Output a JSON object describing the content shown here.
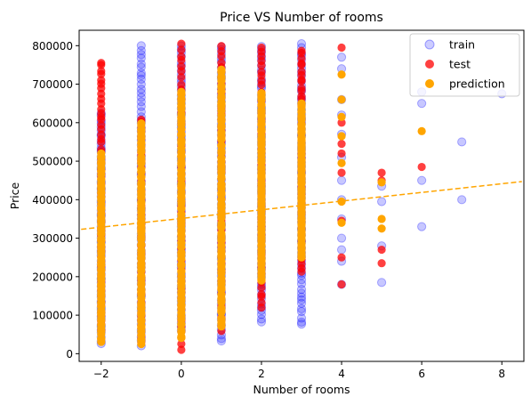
{
  "chart_data": {
    "type": "scatter",
    "title": "Price VS Number of rooms",
    "xlabel": "Number of rooms",
    "ylabel": "Price",
    "xlim": [
      -2.55,
      8.55
    ],
    "ylim": [
      -20000,
      840000
    ],
    "xticks": [
      -2,
      0,
      2,
      4,
      6,
      8
    ],
    "yticks": [
      0,
      100000,
      200000,
      300000,
      400000,
      500000,
      600000,
      700000,
      800000
    ],
    "grid": false,
    "legend": {
      "placement": "top-right"
    },
    "legend_entries": [
      "train",
      "test",
      "prediction"
    ],
    "colors": {
      "train": "#0000ff",
      "test": "#ff0000",
      "prediction": "#ffa500",
      "trend": "#ffa500"
    },
    "trend_line": {
      "style": "dashed",
      "x": [
        -2.5,
        8.5
      ],
      "y": [
        323000,
        447000
      ]
    },
    "columns": [
      {
        "x": -2,
        "train": [
          25000,
          625000
        ],
        "test": [
          60000,
          750000
        ],
        "prediction": [
          30000,
          520000
        ],
        "extra_test": [
          615000,
          755000
        ]
      },
      {
        "x": -1,
        "train": [
          20000,
          800000
        ],
        "test": [
          30000,
          610000
        ],
        "prediction": [
          25000,
          600000
        ]
      },
      {
        "x": 0,
        "train": [
          60000,
          800000
        ],
        "test": [
          10000,
          805000
        ],
        "prediction": [
          40000,
          680000
        ]
      },
      {
        "x": 1,
        "train": [
          30000,
          800000
        ],
        "test": [
          55000,
          800000
        ],
        "prediction": [
          70000,
          740000
        ]
      },
      {
        "x": 2,
        "train": [
          80000,
          800000
        ],
        "test": [
          120000,
          795000
        ],
        "prediction": [
          190000,
          680000
        ]
      },
      {
        "x": 3,
        "train": [
          75000,
          805000
        ],
        "test": [
          210000,
          790000
        ],
        "prediction": [
          250000,
          650000
        ]
      }
    ],
    "points": {
      "train": [
        {
          "x": 4,
          "y": 180000
        },
        {
          "x": 4,
          "y": 240000
        },
        {
          "x": 4,
          "y": 270000
        },
        {
          "x": 4,
          "y": 300000
        },
        {
          "x": 4,
          "y": 350000
        },
        {
          "x": 4,
          "y": 400000
        },
        {
          "x": 4,
          "y": 450000
        },
        {
          "x": 4,
          "y": 510000
        },
        {
          "x": 4,
          "y": 570000
        },
        {
          "x": 4,
          "y": 620000
        },
        {
          "x": 4,
          "y": 660000
        },
        {
          "x": 4,
          "y": 740000
        },
        {
          "x": 4,
          "y": 770000
        },
        {
          "x": 5,
          "y": 185000
        },
        {
          "x": 5,
          "y": 280000
        },
        {
          "x": 5,
          "y": 395000
        },
        {
          "x": 5,
          "y": 435000
        },
        {
          "x": 6,
          "y": 330000
        },
        {
          "x": 6,
          "y": 450000
        },
        {
          "x": 6,
          "y": 650000
        },
        {
          "x": 6,
          "y": 680000
        },
        {
          "x": 7,
          "y": 400000
        },
        {
          "x": 7,
          "y": 550000
        },
        {
          "x": 8,
          "y": 675000
        }
      ],
      "test": [
        {
          "x": 4,
          "y": 180000
        },
        {
          "x": 4,
          "y": 250000
        },
        {
          "x": 4,
          "y": 345000
        },
        {
          "x": 4,
          "y": 470000
        },
        {
          "x": 4,
          "y": 520000
        },
        {
          "x": 4,
          "y": 545000
        },
        {
          "x": 4,
          "y": 600000
        },
        {
          "x": 4,
          "y": 795000
        },
        {
          "x": 5,
          "y": 235000
        },
        {
          "x": 5,
          "y": 270000
        },
        {
          "x": 5,
          "y": 450000
        },
        {
          "x": 5,
          "y": 470000
        },
        {
          "x": 6,
          "y": 485000
        }
      ],
      "prediction": [
        {
          "x": 4,
          "y": 340000
        },
        {
          "x": 4,
          "y": 395000
        },
        {
          "x": 4,
          "y": 495000
        },
        {
          "x": 4,
          "y": 565000
        },
        {
          "x": 4,
          "y": 615000
        },
        {
          "x": 4,
          "y": 660000
        },
        {
          "x": 4,
          "y": 725000
        },
        {
          "x": 5,
          "y": 325000
        },
        {
          "x": 5,
          "y": 350000
        },
        {
          "x": 5,
          "y": 445000
        },
        {
          "x": 6,
          "y": 578000
        }
      ]
    }
  }
}
